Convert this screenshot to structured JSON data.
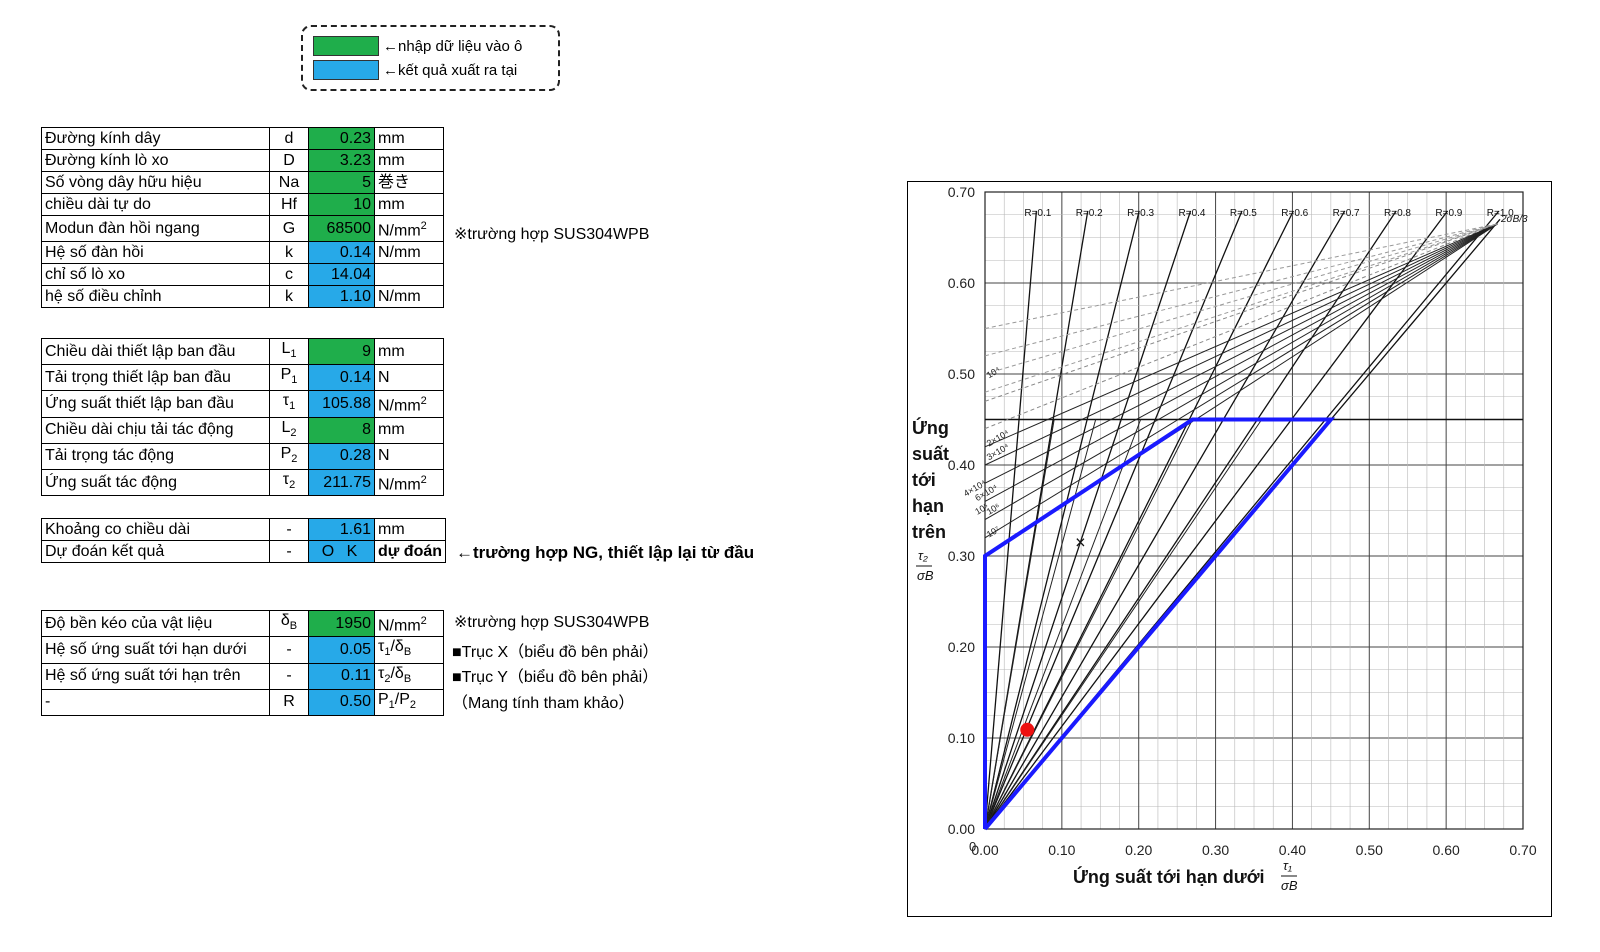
{
  "legend": {
    "input_color": "#1fae4b",
    "output_color": "#27a9e8",
    "input_text": "←nhập dữ liệu vào ô",
    "output_text": "←kết quả xuất ra tại"
  },
  "table1": [
    {
      "label": "Đường kính dây",
      "symbol": "d",
      "value": "0.23",
      "unit": "mm",
      "kind": "inp"
    },
    {
      "label": "Đường kính lò xo",
      "symbol": "D",
      "value": "3.23",
      "unit": "mm",
      "kind": "inp"
    },
    {
      "label": "Số vòng dây hữu hiệu",
      "symbol": "Na",
      "value": "5",
      "unit": "巻き",
      "kind": "inp"
    },
    {
      "label": "chiều dài tự do",
      "symbol": "Hf",
      "value": "10",
      "unit": "mm",
      "kind": "inp"
    },
    {
      "label": "Modun đàn hồi ngang",
      "symbol": "G",
      "value": "68500",
      "unit": "N/mm2",
      "kind": "inp"
    },
    {
      "label": "Hệ số đàn hồi",
      "symbol": "k",
      "value": "0.14",
      "unit": "N/mm",
      "kind": "out"
    },
    {
      "label": "chỉ số lò xo",
      "symbol": "c",
      "value": "14.04",
      "unit": "",
      "kind": "out"
    },
    {
      "label": "hệ số điều chỉnh",
      "symbol": "k",
      "value": "1.10",
      "unit": "N/mm",
      "kind": "out"
    }
  ],
  "table1_note": "※trường hợp SUS304WPB",
  "table2": [
    {
      "label": "Chiều dài thiết lập ban đầu",
      "symbol": "L1",
      "value": "9",
      "unit": "mm",
      "kind": "inp"
    },
    {
      "label": "Tải trọng thiết lập ban đầu",
      "symbol": "P1",
      "value": "0.14",
      "unit": "N",
      "kind": "out"
    },
    {
      "label": "Ứng suất thiết lập ban đầu",
      "symbol": "τ1",
      "value": "105.88",
      "unit": "N/mm2",
      "kind": "out"
    },
    {
      "label": "Chiều dài chịu tải  tác động",
      "symbol": "L2",
      "value": "8",
      "unit": "mm",
      "kind": "inp"
    },
    {
      "label": "Tải trọng tác động",
      "symbol": "P2",
      "value": "0.28",
      "unit": "N",
      "kind": "out"
    },
    {
      "label": "Ứng suất tác động",
      "symbol": "τ2",
      "value": "211.75",
      "unit": "N/mm2",
      "kind": "out"
    }
  ],
  "table3": [
    {
      "label": "Khoảng co chiều dài",
      "symbol": "-",
      "value": "1.61",
      "unit": "mm",
      "kind": "out"
    },
    {
      "label": "Dự đoán kết quả",
      "symbol": "-",
      "value": "O K",
      "unit": "dự đoán",
      "kind": "out"
    }
  ],
  "table3_note": "←trường hợp NG, thiết lập lại từ đầu",
  "table4": [
    {
      "label": "Độ bền kéo của vật liệu",
      "symbol": "δB",
      "value": "1950",
      "unit": "N/mm2",
      "kind": "inp",
      "note": "※trường hợp SUS304WPB"
    },
    {
      "label": "Hệ số ứng suất tới hạn dưới",
      "symbol": "-",
      "value": "0.05",
      "unit": "τ1/δB",
      "kind": "out",
      "note": "■Trục X（biểu đồ bên phải）"
    },
    {
      "label": "Hệ số ứng suất tới hạn trên",
      "symbol": "-",
      "value": "0.11",
      "unit": "τ2/δB",
      "kind": "out",
      "note": "■Trục Y（biểu đồ bên phải）"
    },
    {
      "label": "-",
      "symbol": "R",
      "value": "0.50",
      "unit": "P1/P2",
      "kind": "out",
      "note": "（Mang tính tham khảo）"
    }
  ],
  "chart_data": {
    "type": "scatter",
    "title": "",
    "xlabel": "Ứng suất tới hạn dưới τ1/σB",
    "ylabel": "Ứng suất tới hạn trên τ2/σB",
    "ylabel_lines": [
      "Ứng",
      "suất",
      "tới",
      "hạn",
      "trên"
    ],
    "xlim": [
      0,
      0.7
    ],
    "ylim": [
      0,
      0.7
    ],
    "x_ticks": [
      "0.00",
      "0.10",
      "0.20",
      "0.30",
      "0.40",
      "0.50",
      "0.60",
      "0.70"
    ],
    "y_ticks": [
      "0.00",
      "0.10",
      "0.20",
      "0.30",
      "0.40",
      "0.50",
      "0.60",
      "0.70"
    ],
    "origin_label": "0",
    "r_lines": [
      {
        "label": "R=0.1",
        "r": 0.1
      },
      {
        "label": "R=0.2",
        "r": 0.2
      },
      {
        "label": "R=0.3",
        "r": 0.3
      },
      {
        "label": "R=0.4",
        "r": 0.4
      },
      {
        "label": "R=0.5",
        "r": 0.5
      },
      {
        "label": "R=0.6",
        "r": 0.6
      },
      {
        "label": "R=0.7",
        "r": 0.7
      },
      {
        "label": "R=0.8",
        "r": 0.8
      },
      {
        "label": "R=0.9",
        "r": 0.9
      },
      {
        "label": "R=1.0",
        "r": 1.0
      }
    ],
    "sigma_label": "2σB/3",
    "cycle_labels": [
      "10⁴",
      "2×10⁴",
      "3×10⁴",
      "4×10⁴",
      "6×10⁴",
      "10⁵",
      "10⁶",
      "10⁷"
    ],
    "safe_zone": {
      "color": "#1a1aff",
      "points": [
        [
          0,
          0
        ],
        [
          0,
          0.3
        ],
        [
          0.27,
          0.45
        ],
        [
          0.45,
          0.45
        ],
        [
          0,
          0
        ]
      ]
    },
    "marker_x": {
      "x": 0.125,
      "y": 0.315,
      "symbol": "×"
    },
    "result_point": {
      "x": 0.055,
      "y": 0.109,
      "color": "#ee1111"
    }
  }
}
